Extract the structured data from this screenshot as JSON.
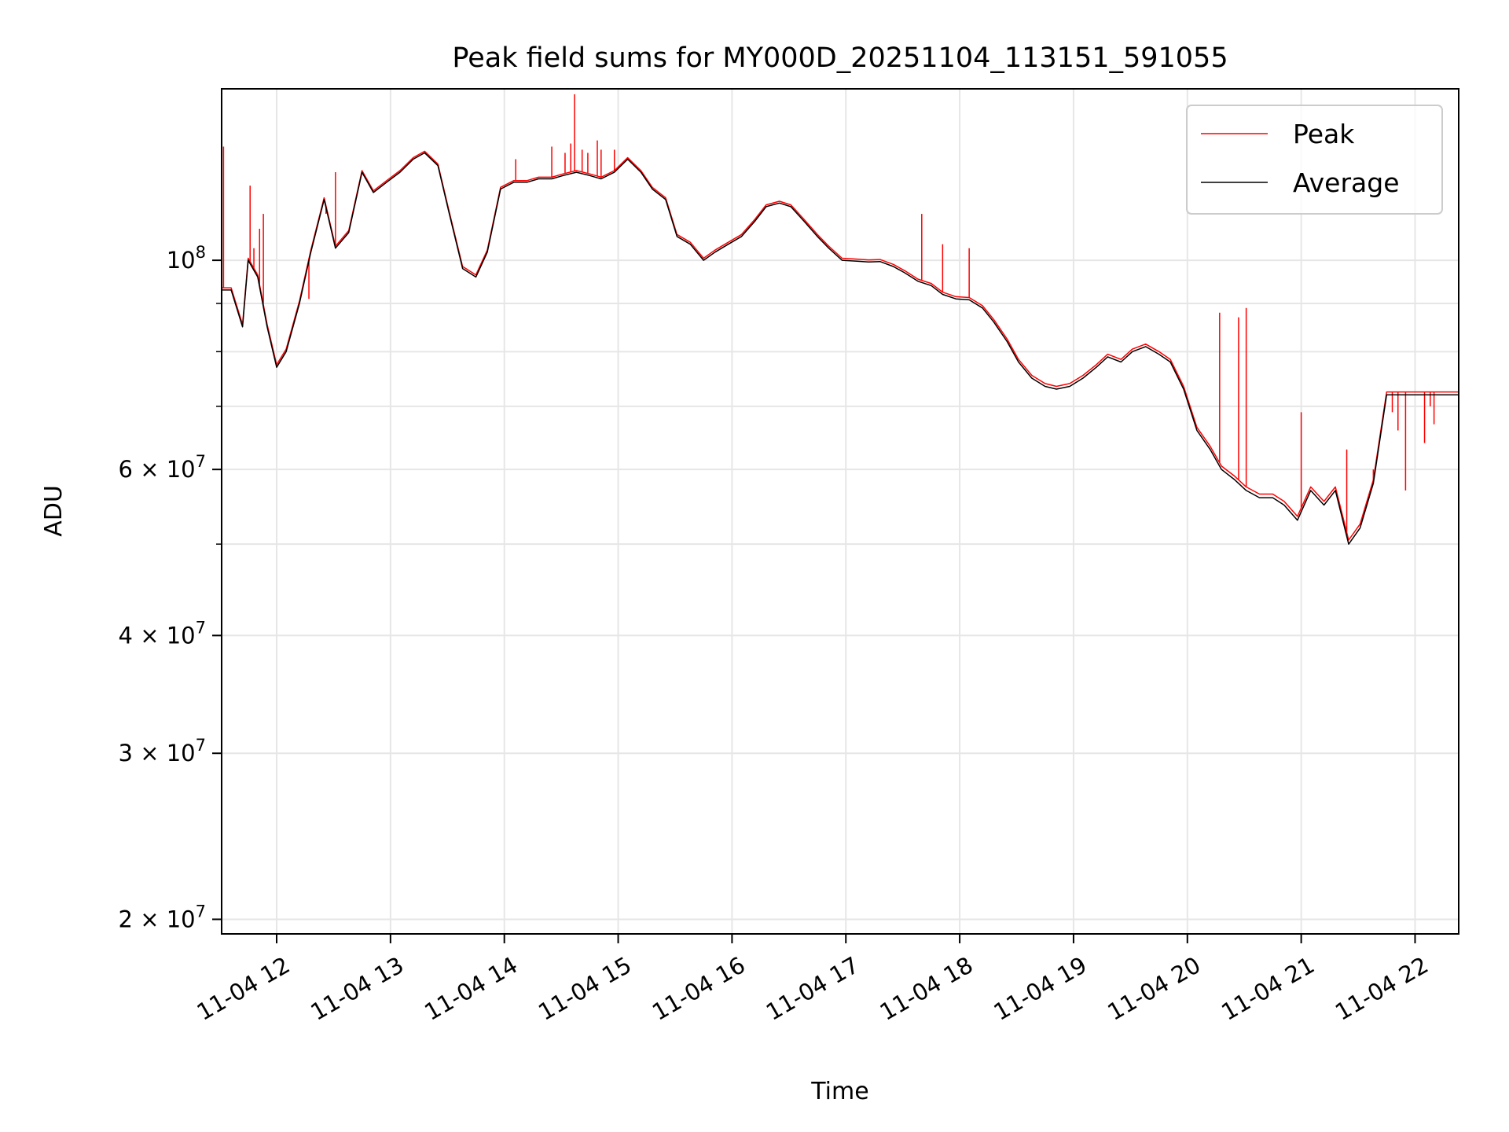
{
  "chart_data": {
    "type": "line",
    "title": "Peak field sums for MY000D_20251104_113151_591055",
    "xlabel": "Time",
    "ylabel": "ADU",
    "yscale": "log",
    "ylim": [
      19300000,
      152000000
    ],
    "xlim": [
      "11-04 11:31",
      "11-04 22:23"
    ],
    "grid": true,
    "legend_position": "top-right",
    "x_ticks": [
      "11-04 12",
      "11-04 13",
      "11-04 14",
      "11-04 15",
      "11-04 16",
      "11-04 17",
      "11-04 18",
      "11-04 19",
      "11-04 20",
      "11-04 21",
      "11-04 22"
    ],
    "y_ticks": [
      {
        "value": 100000000,
        "label": "10^8",
        "base": "10",
        "exp": "8"
      },
      {
        "value": 60000000,
        "label": "6×10^7",
        "base": "6 × 10",
        "exp": "7"
      },
      {
        "value": 40000000,
        "label": "4×10^7",
        "base": "4 × 10",
        "exp": "7"
      },
      {
        "value": 30000000,
        "label": "3×10^7",
        "base": "3 × 10",
        "exp": "7"
      },
      {
        "value": 20000000,
        "label": "2×10^7",
        "base": "2 × 10",
        "exp": "7"
      }
    ],
    "y_minor_ticks": [
      50000000,
      70000000,
      80000000,
      90000000
    ],
    "x_values": [
      "11-04 11:31",
      "11-04 11:36",
      "11-04 11:42",
      "11-04 11:45",
      "11-04 11:50",
      "11-04 11:55",
      "11-04 12:00",
      "11-04 12:05",
      "11-04 12:12",
      "11-04 12:18",
      "11-04 12:25",
      "11-04 12:31",
      "11-04 12:38",
      "11-04 12:45",
      "11-04 12:51",
      "11-04 12:58",
      "11-04 13:05",
      "11-04 13:12",
      "11-04 13:18",
      "11-04 13:25",
      "11-04 13:31",
      "11-04 13:38",
      "11-04 13:45",
      "11-04 13:51",
      "11-04 13:58",
      "11-04 14:05",
      "11-04 14:12",
      "11-04 14:18",
      "11-04 14:25",
      "11-04 14:31",
      "11-04 14:38",
      "11-04 14:45",
      "11-04 14:51",
      "11-04 14:58",
      "11-04 15:05",
      "11-04 15:12",
      "11-04 15:18",
      "11-04 15:25",
      "11-04 15:31",
      "11-04 15:38",
      "11-04 15:45",
      "11-04 15:51",
      "11-04 15:58",
      "11-04 16:05",
      "11-04 16:12",
      "11-04 16:18",
      "11-04 16:25",
      "11-04 16:31",
      "11-04 16:38",
      "11-04 16:45",
      "11-04 16:51",
      "11-04 16:58",
      "11-04 17:05",
      "11-04 17:12",
      "11-04 17:18",
      "11-04 17:25",
      "11-04 17:31",
      "11-04 17:38",
      "11-04 17:45",
      "11-04 17:51",
      "11-04 17:58",
      "11-04 18:05",
      "11-04 18:12",
      "11-04 18:18",
      "11-04 18:25",
      "11-04 18:31",
      "11-04 18:38",
      "11-04 18:45",
      "11-04 18:51",
      "11-04 18:58",
      "11-04 19:05",
      "11-04 19:12",
      "11-04 19:18",
      "11-04 19:25",
      "11-04 19:31",
      "11-04 19:38",
      "11-04 19:45",
      "11-04 19:51",
      "11-04 19:58",
      "11-04 20:05",
      "11-04 20:12",
      "11-04 20:18",
      "11-04 20:25",
      "11-04 20:31",
      "11-04 20:38",
      "11-04 20:45",
      "11-04 20:51",
      "11-04 20:58",
      "11-04 21:05",
      "11-04 21:12",
      "11-04 21:18",
      "11-04 21:25",
      "11-04 21:31",
      "11-04 21:38",
      "11-04 21:45",
      "11-04 21:51",
      "11-04 21:58",
      "11-04 22:05",
      "11-04 22:12",
      "11-04 22:18",
      "11-04 22:23"
    ],
    "series": [
      {
        "name": "Average",
        "color": "#000000",
        "values": [
          93000000,
          93000000,
          85000000,
          100000000,
          96000000,
          85000000,
          77000000,
          80000000,
          90000000,
          102000000,
          116000000,
          103000000,
          107000000,
          124000000,
          118000000,
          121000000,
          124000000,
          128000000,
          130000000,
          126000000,
          112000000,
          98000000,
          96000000,
          102000000,
          119000000,
          121000000,
          121000000,
          122000000,
          122000000,
          123000000,
          124000000,
          123000000,
          122000000,
          124000000,
          128000000,
          124000000,
          119000000,
          116000000,
          106000000,
          104000000,
          100000000,
          102000000,
          104000000,
          106000000,
          110000000,
          114000000,
          115000000,
          114000000,
          110000000,
          106000000,
          103000000,
          100000000,
          99800000,
          99600000,
          99700000,
          98500000,
          97000000,
          95000000,
          94000000,
          92000000,
          91000000,
          90800000,
          89000000,
          86000000,
          82000000,
          78000000,
          75000000,
          73500000,
          73000000,
          73500000,
          75000000,
          77000000,
          79000000,
          78000000,
          80000000,
          81000000,
          79500000,
          78000000,
          73000000,
          66000000,
          63000000,
          60000000,
          58500000,
          57000000,
          56000000,
          56000000,
          55000000,
          53000000,
          57000000,
          55000000,
          57000000,
          50000000,
          52000000,
          58000000,
          72000000,
          72000000,
          72000000,
          72000000,
          72000000,
          72000000,
          72000000
        ]
      },
      {
        "name": "Peak",
        "color": "#ff0000",
        "values": [
          93500000,
          93500000,
          85500000,
          100500000,
          96500000,
          85500000,
          77500000,
          80500000,
          90500000,
          102500000,
          116500000,
          103500000,
          107500000,
          124500000,
          118500000,
          121500000,
          124500000,
          128500000,
          130500000,
          126500000,
          112500000,
          98500000,
          96500000,
          102500000,
          119500000,
          121500000,
          121500000,
          122500000,
          122500000,
          123500000,
          124500000,
          123500000,
          122500000,
          124500000,
          128500000,
          124500000,
          119500000,
          116500000,
          106500000,
          104500000,
          100500000,
          102500000,
          104500000,
          106500000,
          110500000,
          114500000,
          115500000,
          114500000,
          110500000,
          106500000,
          103500000,
          100500000,
          100300000,
          100100000,
          100200000,
          99000000,
          97500000,
          95500000,
          94500000,
          92500000,
          91500000,
          91300000,
          89500000,
          86500000,
          82500000,
          78500000,
          75500000,
          74000000,
          73500000,
          74000000,
          75500000,
          77500000,
          79500000,
          78500000,
          80500000,
          81500000,
          80000000,
          78500000,
          73500000,
          66500000,
          63500000,
          60500000,
          59000000,
          57500000,
          56500000,
          56500000,
          55500000,
          53500000,
          57500000,
          55500000,
          57500000,
          50500000,
          52500000,
          58500000,
          72500000,
          72500000,
          72500000,
          72500000,
          72500000,
          72500000,
          72500000
        ],
        "spikes": [
          {
            "x": "11-04 11:32",
            "y": 132000000
          },
          {
            "x": "11-04 11:46",
            "y": 120000000
          },
          {
            "x": "11-04 11:48",
            "y": 103000000
          },
          {
            "x": "11-04 11:51",
            "y": 108000000
          },
          {
            "x": "11-04 11:53",
            "y": 112000000
          },
          {
            "x": "11-04 12:17",
            "y": 91000000
          },
          {
            "x": "11-04 12:26",
            "y": 112000000
          },
          {
            "x": "11-04 12:31",
            "y": 124000000
          },
          {
            "x": "11-04 14:06",
            "y": 128000000
          },
          {
            "x": "11-04 14:25",
            "y": 132000000
          },
          {
            "x": "11-04 14:32",
            "y": 130000000
          },
          {
            "x": "11-04 14:35",
            "y": 133000000
          },
          {
            "x": "11-04 14:37",
            "y": 150000000
          },
          {
            "x": "11-04 14:41",
            "y": 131000000
          },
          {
            "x": "11-04 14:44",
            "y": 130000000
          },
          {
            "x": "11-04 14:49",
            "y": 134000000
          },
          {
            "x": "11-04 14:51",
            "y": 131000000
          },
          {
            "x": "11-04 14:58",
            "y": 131000000
          },
          {
            "x": "11-04 17:40",
            "y": 112000000
          },
          {
            "x": "11-04 17:51",
            "y": 104000000
          },
          {
            "x": "11-04 18:05",
            "y": 103000000
          },
          {
            "x": "11-04 20:17",
            "y": 88000000
          },
          {
            "x": "11-04 20:27",
            "y": 87000000
          },
          {
            "x": "11-04 20:31",
            "y": 89000000
          },
          {
            "x": "11-04 21:00",
            "y": 69000000
          },
          {
            "x": "11-04 21:24",
            "y": 63000000
          },
          {
            "x": "11-04 21:38",
            "y": 60000000
          },
          {
            "x": "11-04 21:48",
            "y": 69000000
          },
          {
            "x": "11-04 21:51",
            "y": 66000000
          },
          {
            "x": "11-04 21:55",
            "y": 57000000
          },
          {
            "x": "11-04 22:05",
            "y": 64000000
          },
          {
            "x": "11-04 22:08",
            "y": 70000000
          },
          {
            "x": "11-04 22:10",
            "y": 67000000
          }
        ]
      }
    ]
  }
}
